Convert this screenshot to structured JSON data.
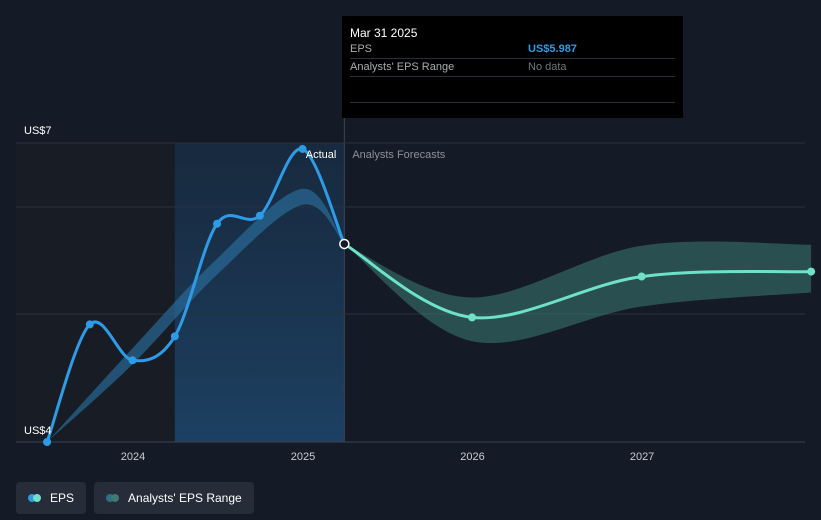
{
  "chart_data": {
    "type": "line",
    "y_axis": {
      "label_top": "US$7",
      "label_bottom": "US$4",
      "ylim": [
        4,
        7
      ]
    },
    "x_axis": {
      "ticks": [
        "2024",
        "2025",
        "2026",
        "2027"
      ]
    },
    "region_labels": {
      "actual": "Actual",
      "forecast": "Analysts Forecasts"
    },
    "series": [
      {
        "name": "EPS",
        "color": "#2f9be6",
        "points": [
          [
            "2023-06-30",
            4.0
          ],
          [
            "2023-09-30",
            5.18
          ],
          [
            "2023-12-31",
            4.82
          ],
          [
            "2024-03-31",
            5.06
          ],
          [
            "2024-06-30",
            6.19
          ],
          [
            "2024-09-30",
            6.27
          ],
          [
            "2024-12-31",
            6.94
          ],
          [
            "2025-03-31",
            5.987
          ]
        ]
      },
      {
        "name": "EPS Forecast",
        "color": "#6ee2c8",
        "points": [
          [
            "2025-03-31",
            5.987
          ],
          [
            "2025-12-31",
            5.25
          ],
          [
            "2026-12-31",
            5.66
          ],
          [
            "2027-12-31",
            5.71
          ]
        ]
      },
      {
        "name": "Analysts' EPS Range",
        "color": "#3c7a72",
        "low": [
          [
            "2025-03-31",
            5.987
          ],
          [
            "2025-12-31",
            5.01
          ],
          [
            "2026-12-31",
            5.36
          ],
          [
            "2027-12-31",
            5.5
          ]
        ],
        "high": [
          [
            "2025-03-31",
            5.987
          ],
          [
            "2025-12-31",
            5.45
          ],
          [
            "2026-12-31",
            5.97
          ],
          [
            "2027-12-31",
            5.98
          ]
        ]
      }
    ]
  },
  "tooltip": {
    "date": "Mar 31 2025",
    "rows": [
      {
        "label": "EPS",
        "value": "US$5.987"
      },
      {
        "label": "Analysts' EPS Range",
        "value": "No data"
      }
    ]
  },
  "legend": [
    {
      "label": "EPS",
      "color_a": "#2f9be6",
      "color_b": "#6ee2c8"
    },
    {
      "label": "Analysts' EPS Range",
      "color_a": "#2f6f86",
      "color_b": "#3c7a72"
    }
  ]
}
